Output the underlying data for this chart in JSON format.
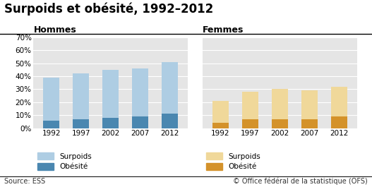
{
  "title": "Surpoids et obésité, 1992–2012",
  "years": [
    "1992",
    "1997",
    "2002",
    "2007",
    "2012"
  ],
  "hommes_obesite": [
    6,
    7,
    8,
    9,
    11
  ],
  "hommes_surpoids": [
    33,
    35,
    37,
    37,
    40
  ],
  "femmes_obesite": [
    4,
    7,
    7,
    7,
    9
  ],
  "femmes_surpoids": [
    17,
    21,
    23,
    22,
    23
  ],
  "color_h_surpoids": "#aecde3",
  "color_h_obesite": "#4a87b0",
  "color_f_surpoids": "#f0d89a",
  "color_f_obesite": "#d4922a",
  "bg_color": "#e5e5e5",
  "ylim": [
    0,
    70
  ],
  "yticks": [
    0,
    10,
    20,
    30,
    40,
    50,
    60,
    70
  ],
  "source_left": "Source: ESS",
  "source_right": "© Office fédéral de la statistique (OFS)",
  "label_hommes": "Hommes",
  "label_femmes": "Femmes",
  "label_surpoids": "Surpoids",
  "label_obesite": "Obésité",
  "title_fontsize": 12,
  "axis_fontsize": 7.5,
  "legend_fontsize": 7.5
}
